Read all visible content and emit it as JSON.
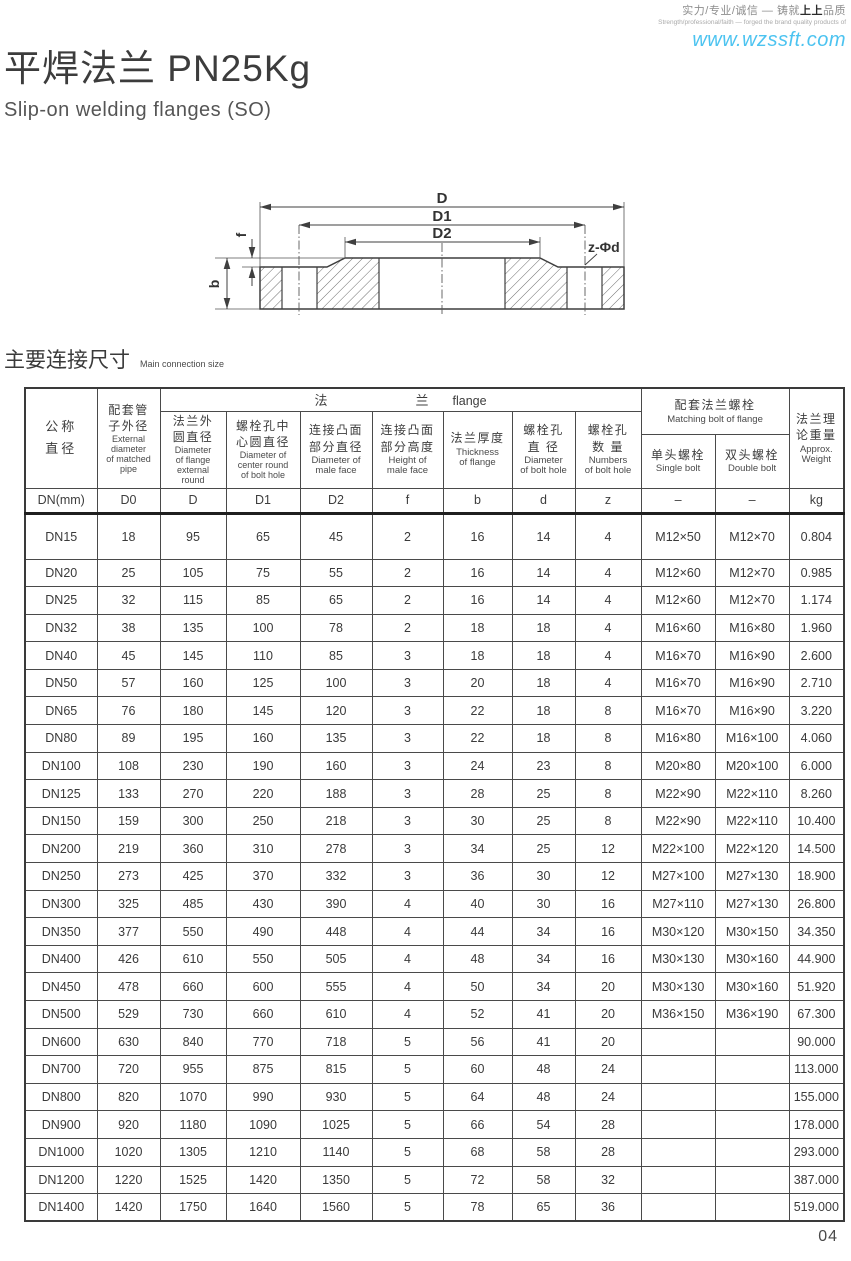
{
  "masthead": {
    "tagline_cn_pre": "实力/专业/诚信 — 铸就",
    "tagline_cn_bold": "上上",
    "tagline_cn_post": "品质",
    "tagline_en": "Strength/professional/faith — forged the brand quality products of",
    "website": "www.wzssft.com"
  },
  "title": {
    "cn": "平焊法兰 PN25Kg",
    "en": "Slip-on welding flanges (SO)"
  },
  "diagram": {
    "labels": {
      "d": "D",
      "d1": "D1",
      "d2": "D2",
      "f": "f",
      "b": "b",
      "zd": "z-Φd"
    }
  },
  "section_heading": {
    "cn": "主要连接尺寸",
    "en": "Main connection size"
  },
  "table": {
    "flange_group": {
      "cn_left": "法",
      "cn_right": "兰",
      "en": "flange"
    },
    "bolt_group": {
      "cn": "配套法兰螺栓",
      "en": "Matching bolt of flange"
    },
    "columns": [
      {
        "cn": "公称\n直径",
        "en": ""
      },
      {
        "cn": "配套管\n子外径",
        "en": "External\ndiameter\nof matched\npipe"
      },
      {
        "cn": "法兰外\n圆直径",
        "en": "Diameter\nof flange\nexternal\nround"
      },
      {
        "cn": "螺栓孔中\n心圆直径",
        "en": "Diameter of\ncenter round\nof bolt hole"
      },
      {
        "cn": "连接凸面\n部分直径",
        "en": "Diameter of\nmale face"
      },
      {
        "cn": "连接凸面\n部分高度",
        "en": "Height of\nmale face"
      },
      {
        "cn": "法兰厚度",
        "en": "Thickness\nof flange"
      },
      {
        "cn": "螺栓孔\n直 径",
        "en": "Diameter\nof bolt hole"
      },
      {
        "cn": "螺栓孔\n数 量",
        "en": "Numbers\nof bolt hole"
      },
      {
        "cn": "单头螺栓",
        "en": "Single bolt"
      },
      {
        "cn": "双头螺栓",
        "en": "Double bolt"
      },
      {
        "cn": "法兰理\n论重量",
        "en": "Approx.\nWeight"
      }
    ],
    "units": [
      "DN(mm)",
      "D0",
      "D",
      "D1",
      "D2",
      "f",
      "b",
      "d",
      "z",
      "–",
      "–",
      "kg"
    ],
    "rows": [
      [
        "DN15",
        "18",
        "95",
        "65",
        "45",
        "2",
        "16",
        "14",
        "4",
        "M12×50",
        "M12×70",
        "0.804"
      ],
      [
        "DN20",
        "25",
        "105",
        "75",
        "55",
        "2",
        "16",
        "14",
        "4",
        "M12×60",
        "M12×70",
        "0.985"
      ],
      [
        "DN25",
        "32",
        "115",
        "85",
        "65",
        "2",
        "16",
        "14",
        "4",
        "M12×60",
        "M12×70",
        "1.174"
      ],
      [
        "DN32",
        "38",
        "135",
        "100",
        "78",
        "2",
        "18",
        "18",
        "4",
        "M16×60",
        "M16×80",
        "1.960"
      ],
      [
        "DN40",
        "45",
        "145",
        "110",
        "85",
        "3",
        "18",
        "18",
        "4",
        "M16×70",
        "M16×90",
        "2.600"
      ],
      [
        "DN50",
        "57",
        "160",
        "125",
        "100",
        "3",
        "20",
        "18",
        "4",
        "M16×70",
        "M16×90",
        "2.710"
      ],
      [
        "DN65",
        "76",
        "180",
        "145",
        "120",
        "3",
        "22",
        "18",
        "8",
        "M16×70",
        "M16×90",
        "3.220"
      ],
      [
        "DN80",
        "89",
        "195",
        "160",
        "135",
        "3",
        "22",
        "18",
        "8",
        "M16×80",
        "M16×100",
        "4.060"
      ],
      [
        "DN100",
        "108",
        "230",
        "190",
        "160",
        "3",
        "24",
        "23",
        "8",
        "M20×80",
        "M20×100",
        "6.000"
      ],
      [
        "DN125",
        "133",
        "270",
        "220",
        "188",
        "3",
        "28",
        "25",
        "8",
        "M22×90",
        "M22×110",
        "8.260"
      ],
      [
        "DN150",
        "159",
        "300",
        "250",
        "218",
        "3",
        "30",
        "25",
        "8",
        "M22×90",
        "M22×110",
        "10.400"
      ],
      [
        "DN200",
        "219",
        "360",
        "310",
        "278",
        "3",
        "34",
        "25",
        "12",
        "M22×100",
        "M22×120",
        "14.500"
      ],
      [
        "DN250",
        "273",
        "425",
        "370",
        "332",
        "3",
        "36",
        "30",
        "12",
        "M27×100",
        "M27×130",
        "18.900"
      ],
      [
        "DN300",
        "325",
        "485",
        "430",
        "390",
        "4",
        "40",
        "30",
        "16",
        "M27×110",
        "M27×130",
        "26.800"
      ],
      [
        "DN350",
        "377",
        "550",
        "490",
        "448",
        "4",
        "44",
        "34",
        "16",
        "M30×120",
        "M30×150",
        "34.350"
      ],
      [
        "DN400",
        "426",
        "610",
        "550",
        "505",
        "4",
        "48",
        "34",
        "16",
        "M30×130",
        "M30×160",
        "44.900"
      ],
      [
        "DN450",
        "478",
        "660",
        "600",
        "555",
        "4",
        "50",
        "34",
        "20",
        "M30×130",
        "M30×160",
        "51.920"
      ],
      [
        "DN500",
        "529",
        "730",
        "660",
        "610",
        "4",
        "52",
        "41",
        "20",
        "M36×150",
        "M36×190",
        "67.300"
      ],
      [
        "DN600",
        "630",
        "840",
        "770",
        "718",
        "5",
        "56",
        "41",
        "20",
        "",
        "",
        "90.000"
      ],
      [
        "DN700",
        "720",
        "955",
        "875",
        "815",
        "5",
        "60",
        "48",
        "24",
        "",
        "",
        "113.000"
      ],
      [
        "DN800",
        "820",
        "1070",
        "990",
        "930",
        "5",
        "64",
        "48",
        "24",
        "",
        "",
        "155.000"
      ],
      [
        "DN900",
        "920",
        "1180",
        "1090",
        "1025",
        "5",
        "66",
        "54",
        "28",
        "",
        "",
        "178.000"
      ],
      [
        "DN1000",
        "1020",
        "1305",
        "1210",
        "1140",
        "5",
        "68",
        "58",
        "28",
        "",
        "",
        "293.000"
      ],
      [
        "DN1200",
        "1220",
        "1525",
        "1420",
        "1350",
        "5",
        "72",
        "58",
        "32",
        "",
        "",
        "387.000"
      ],
      [
        "DN1400",
        "1420",
        "1750",
        "1640",
        "1560",
        "5",
        "78",
        "65",
        "36",
        "",
        "",
        "519.000"
      ]
    ]
  },
  "page_number": "04"
}
